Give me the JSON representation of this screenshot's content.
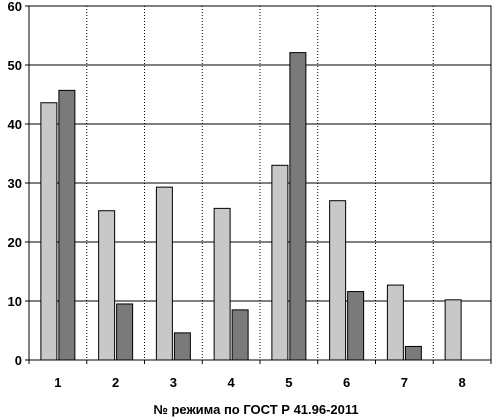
{
  "chart_data": {
    "type": "bar",
    "title": "",
    "xlabel": "№ режима по ГОСТ Р 41.96-2011",
    "ylabel": "",
    "ylim": [
      0,
      60
    ],
    "yticks": [
      0,
      10,
      20,
      30,
      40,
      50,
      60
    ],
    "categories": [
      "1",
      "2",
      "3",
      "4",
      "5",
      "6",
      "7",
      "8"
    ],
    "grid": true,
    "legend": "none",
    "series": [
      {
        "color": "#c8c8c8",
        "values": [
          43.6,
          25.3,
          29.3,
          25.7,
          33.0,
          27.0,
          12.7,
          10.2
        ]
      },
      {
        "color": "#7a7a7a",
        "values": [
          45.7,
          9.5,
          4.6,
          8.5,
          52.1,
          11.6,
          2.3,
          null
        ]
      }
    ]
  }
}
